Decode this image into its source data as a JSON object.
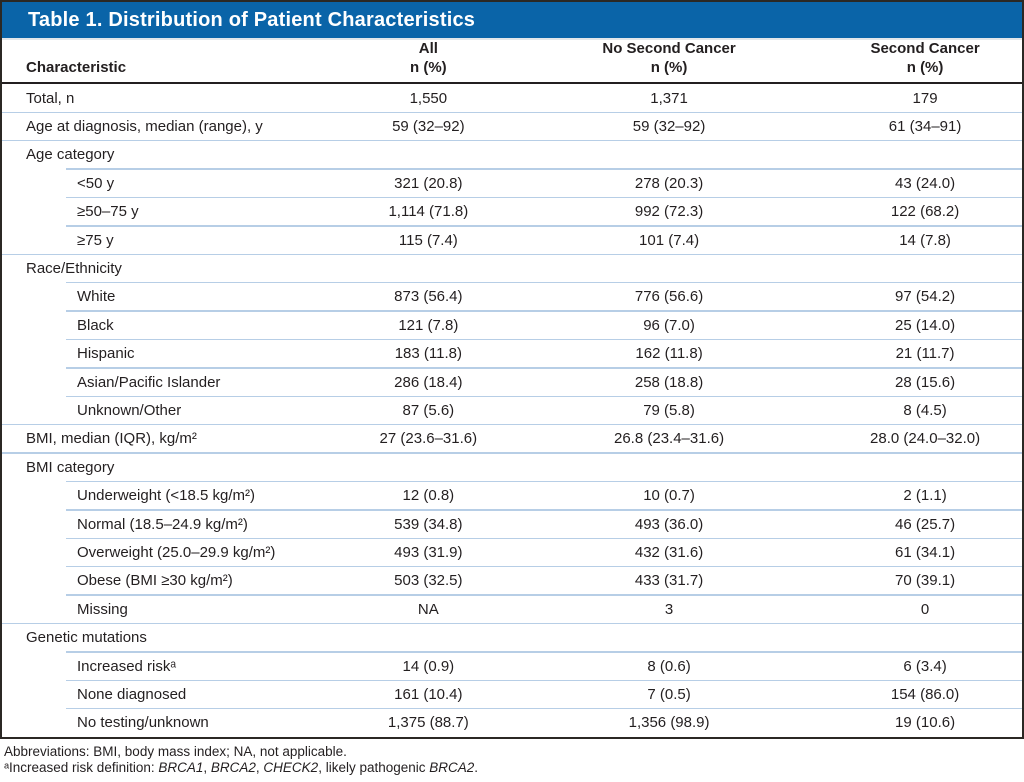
{
  "table": {
    "title": "Table 1. Distribution of Patient Characteristics",
    "header": {
      "characteristic": "Characteristic",
      "cols": [
        {
          "name": "All",
          "sub": "n (%)"
        },
        {
          "name": "No Second Cancer",
          "sub": "n (%)"
        },
        {
          "name": "Second Cancer",
          "sub": "n (%)"
        }
      ]
    },
    "rows": [
      {
        "type": "top",
        "label": "Total, n",
        "all": "1,550",
        "no_second_cancer": "1,371",
        "second_cancer": "179"
      },
      {
        "type": "top",
        "label": "Age at diagnosis, median (range), y",
        "all": "59 (32–92)",
        "no_second_cancer": "59 (32–92)",
        "second_cancer": "61 (34–91)"
      },
      {
        "type": "section",
        "label": "Age category",
        "all": "",
        "no_second_cancer": "",
        "second_cancer": ""
      },
      {
        "type": "sub",
        "label": "<50 y",
        "all": "321 (20.8)",
        "no_second_cancer": "278 (20.3)",
        "second_cancer": "43 (24.0)"
      },
      {
        "type": "sub",
        "label": "≥50–75 y",
        "all": "1,114 (71.8)",
        "no_second_cancer": "992 (72.3)",
        "second_cancer": "122 (68.2)"
      },
      {
        "type": "sub",
        "label": "≥75 y",
        "all": "115 (7.4)",
        "no_second_cancer": "101 (7.4)",
        "second_cancer": "14 (7.8)"
      },
      {
        "type": "section",
        "label": "Race/Ethnicity",
        "all": "",
        "no_second_cancer": "",
        "second_cancer": ""
      },
      {
        "type": "sub",
        "label": "White",
        "all": "873 (56.4)",
        "no_second_cancer": "776 (56.6)",
        "second_cancer": "97 (54.2)"
      },
      {
        "type": "sub",
        "label": "Black",
        "all": "121 (7.8)",
        "no_second_cancer": "96 (7.0)",
        "second_cancer": "25 (14.0)"
      },
      {
        "type": "sub",
        "label": "Hispanic",
        "all": "183 (11.8)",
        "no_second_cancer": "162 (11.8)",
        "second_cancer": "21 (11.7)"
      },
      {
        "type": "sub",
        "label": "Asian/Pacific Islander",
        "all": "286 (18.4)",
        "no_second_cancer": "258 (18.8)",
        "second_cancer": "28 (15.6)"
      },
      {
        "type": "sub",
        "label": "Unknown/Other",
        "all": "87 (5.6)",
        "no_second_cancer": "79 (5.8)",
        "second_cancer": "8 (4.5)"
      },
      {
        "type": "top",
        "label": "BMI, median (IQR), kg/m²",
        "all": "27 (23.6–31.6)",
        "no_second_cancer": "26.8 (23.4–31.6)",
        "second_cancer": "28.0 (24.0–32.0)"
      },
      {
        "type": "section",
        "label": "BMI category",
        "all": "",
        "no_second_cancer": "",
        "second_cancer": ""
      },
      {
        "type": "sub",
        "label": "Underweight (<18.5 kg/m²)",
        "all": "12 (0.8)",
        "no_second_cancer": "10 (0.7)",
        "second_cancer": "2 (1.1)"
      },
      {
        "type": "sub",
        "label": "Normal (18.5–24.9 kg/m²)",
        "all": "539 (34.8)",
        "no_second_cancer": "493 (36.0)",
        "second_cancer": "46 (25.7)"
      },
      {
        "type": "sub",
        "label": "Overweight (25.0–29.9 kg/m²)",
        "all": "493 (31.9)",
        "no_second_cancer": "432 (31.6)",
        "second_cancer": "61 (34.1)"
      },
      {
        "type": "sub",
        "label": "Obese (BMI ≥30 kg/m²)",
        "all": "503 (32.5)",
        "no_second_cancer": "433 (31.7)",
        "second_cancer": "70 (39.1)"
      },
      {
        "type": "sub",
        "label": "Missing",
        "all": "NA",
        "no_second_cancer": "3",
        "second_cancer": "0"
      },
      {
        "type": "section",
        "label": "Genetic mutations",
        "all": "",
        "no_second_cancer": "",
        "second_cancer": ""
      },
      {
        "type": "sub",
        "label": "Increased riskᵃ",
        "all": "14 (0.9)",
        "no_second_cancer": "8 (0.6)",
        "second_cancer": "6 (3.4)"
      },
      {
        "type": "sub",
        "label": "None diagnosed",
        "all": "161 (10.4)",
        "no_second_cancer": "7 (0.5)",
        "second_cancer": "154 (86.0)"
      },
      {
        "type": "sub",
        "label": "No testing/unknown",
        "all": "1,375 (88.7)",
        "no_second_cancer": "1,356 (98.9)",
        "second_cancer": "19 (10.6)"
      }
    ]
  },
  "footnotes": {
    "abbreviations": "Abbreviations: BMI, body mass index; NA, not applicable.",
    "increased_risk_definition": [
      {
        "text": "ᵃIncreased risk definition: ",
        "italic": false
      },
      {
        "text": "BRCA1",
        "italic": true
      },
      {
        "text": ", ",
        "italic": false
      },
      {
        "text": "BRCA2",
        "italic": true
      },
      {
        "text": ", ",
        "italic": false
      },
      {
        "text": "CHECK2",
        "italic": true
      },
      {
        "text": ", likely pathogenic ",
        "italic": false
      },
      {
        "text": "BRCA2",
        "italic": true
      },
      {
        "text": ".",
        "italic": false
      }
    ]
  },
  "colors": {
    "title_bar_blue": "#0a64a8",
    "outer_border": "#2b2824",
    "row_separator": "#b7cee6",
    "text": "#231f20",
    "title_text": "#ffffff"
  }
}
